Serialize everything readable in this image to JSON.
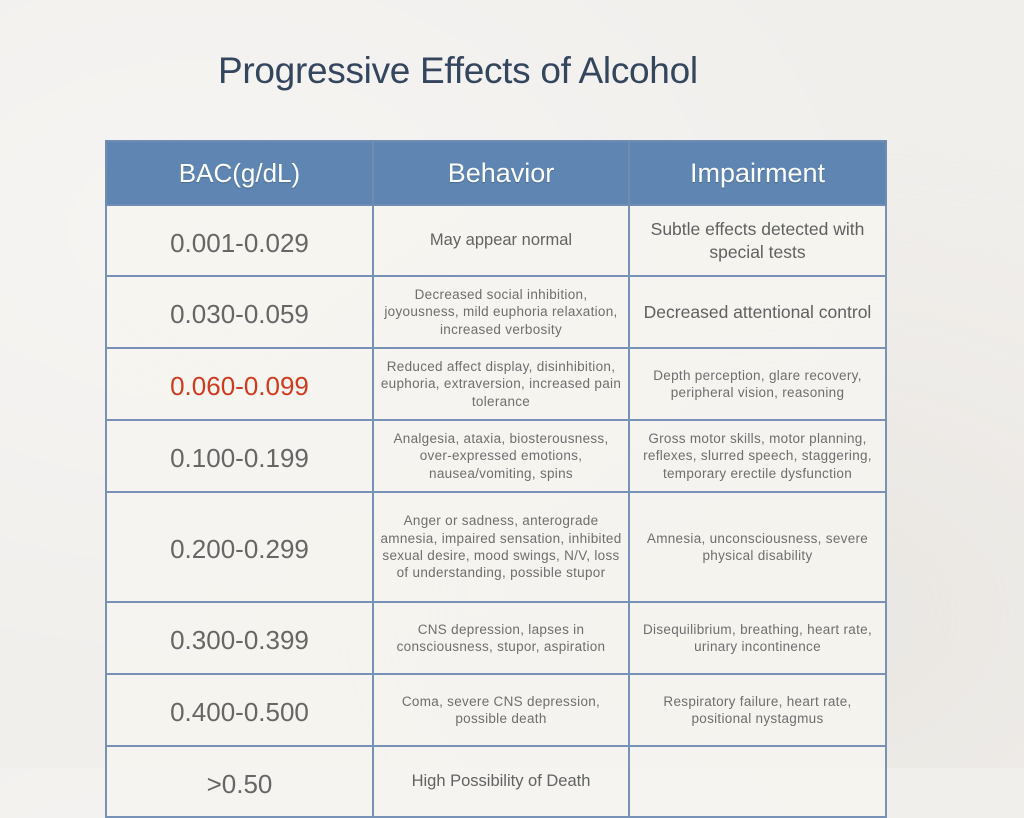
{
  "slide": {
    "title": "Progressive Effects of Alcohol"
  },
  "colors": {
    "title": "#34465e",
    "header_bg": "#5f86b3",
    "grid": "#7891b6",
    "alert": "#d03a1e",
    "text": "#666666"
  },
  "table": {
    "headers": {
      "bac": "BAC(g/dL)",
      "behavior": "Behavior",
      "impairment": "Impairment"
    },
    "rows": [
      {
        "bac": "0.001-0.029",
        "behavior": "May appear normal",
        "impairment": "Subtle effects detected with special tests"
      },
      {
        "bac": "0.030-0.059",
        "behavior": "Decreased social inhibition, joyousness, mild euphoria relaxation, increased verbosity",
        "impairment": "Decreased attentional control"
      },
      {
        "bac": "0.060-0.099",
        "highlighted": true,
        "behavior": "Reduced affect display, disinhibition, euphoria, extraversion, increased pain tolerance",
        "impairment": "Depth perception, glare recovery, peripheral vision, reasoning"
      },
      {
        "bac": "0.100-0.199",
        "behavior": "Analgesia, ataxia, biosterousness, over-expressed emotions, nausea/vomiting, spins",
        "impairment": "Gross motor skills, motor planning, reflexes, slurred speech, staggering, temporary erectile dysfunction"
      },
      {
        "bac": "0.200-0.299",
        "behavior": "Anger or sadness, anterograde amnesia, impaired sensation, inhibited sexual desire, mood swings, N/V, loss of understanding, possible stupor",
        "impairment": "Amnesia, unconsciousness, severe physical disability"
      },
      {
        "bac": "0.300-0.399",
        "behavior": "CNS depression, lapses in consciousness, stupor, aspiration",
        "impairment": "Disequilibrium, breathing, heart rate, urinary incontinence"
      },
      {
        "bac": "0.400-0.500",
        "behavior": "Coma, severe CNS depression, possible death",
        "impairment": "Respiratory failure, heart rate, positional nystagmus"
      },
      {
        "bac": ">0.50",
        "behavior": "High Possibility of Death",
        "impairment": ""
      }
    ]
  }
}
